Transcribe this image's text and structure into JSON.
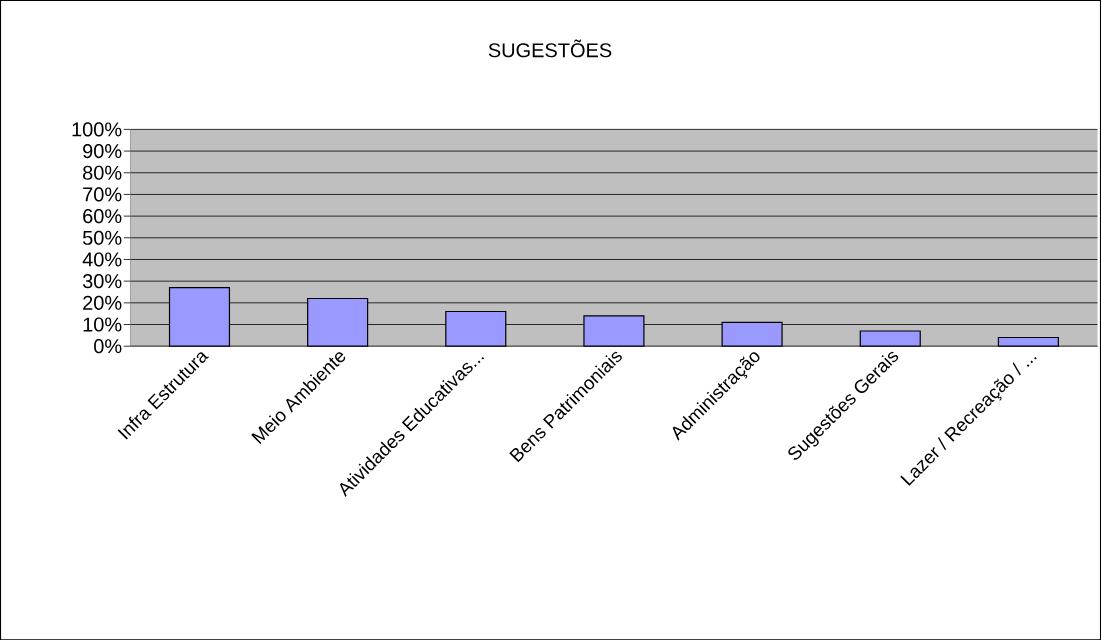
{
  "chart_data": {
    "type": "bar",
    "title": "SUGESTÕES",
    "categories": [
      "Infra Estrutura",
      "Meio Ambiente",
      "Atividades Educativas...",
      "Bens Patrimoniais",
      "Administração",
      "Sugestões Gerais",
      "Lazer / Recreação / ..."
    ],
    "values": [
      27,
      22,
      16,
      14,
      11,
      7,
      4
    ],
    "color": "#9999ff",
    "ylim": [
      0,
      100
    ],
    "yticks": [
      {
        "value": 0,
        "label": "0%"
      },
      {
        "value": 10,
        "label": "10%"
      },
      {
        "value": 20,
        "label": "20%"
      },
      {
        "value": 30,
        "label": "30%"
      },
      {
        "value": 40,
        "label": "40%"
      },
      {
        "value": 50,
        "label": "50%"
      },
      {
        "value": 60,
        "label": "60%"
      },
      {
        "value": 70,
        "label": "70%"
      },
      {
        "value": 80,
        "label": "80%"
      },
      {
        "value": 90,
        "label": "90%"
      },
      {
        "value": 100,
        "label": "100%"
      }
    ],
    "grid": true
  }
}
